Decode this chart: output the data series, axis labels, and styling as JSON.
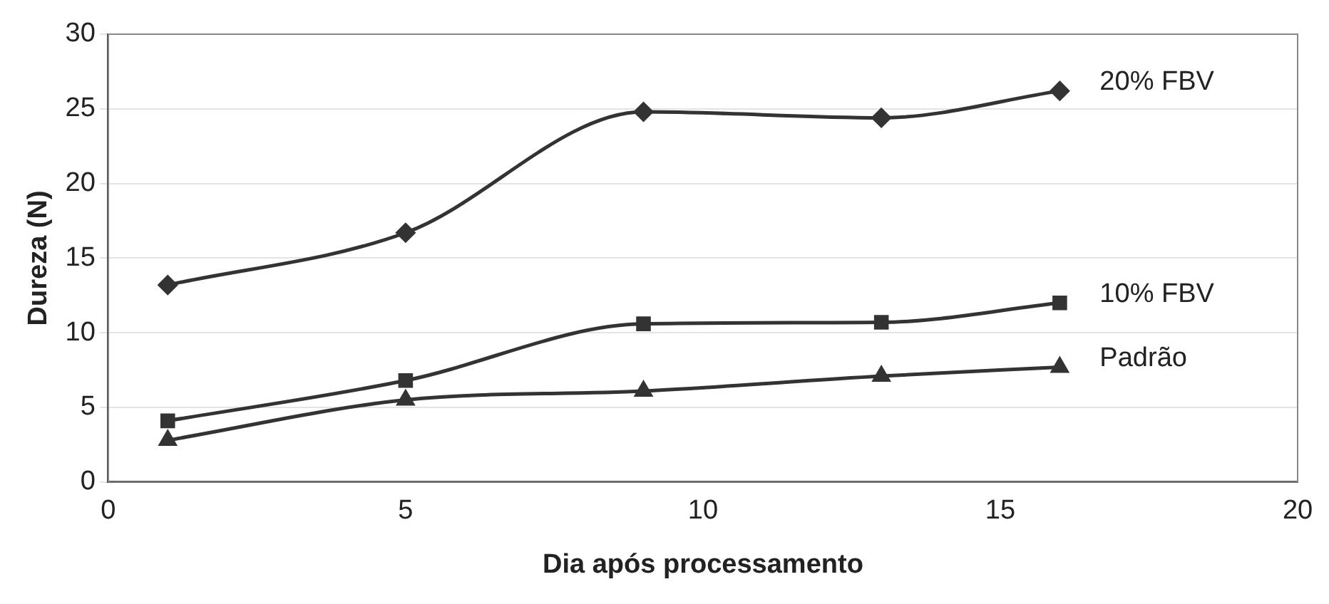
{
  "chart_data": {
    "type": "line",
    "xlabel": "Dia após processamento",
    "ylabel": "Dureza (N)",
    "xlim": [
      0,
      20
    ],
    "xticks": [
      0,
      5,
      10,
      15,
      20
    ],
    "ylim": [
      0,
      30
    ],
    "yticks": [
      0,
      5,
      10,
      15,
      20,
      25,
      30
    ],
    "grid": "y",
    "legend": false,
    "series": [
      {
        "name": "20% FBV",
        "color": "#333333",
        "marker": "diamond",
        "x": [
          1,
          5,
          9,
          13,
          16
        ],
        "values": [
          13.2,
          16.7,
          24.8,
          24.4,
          26.2
        ]
      },
      {
        "name": "10% FBV",
        "color": "#333333",
        "marker": "square",
        "x": [
          1,
          5,
          9,
          13,
          16
        ],
        "values": [
          4.1,
          6.8,
          10.6,
          10.7,
          12.0
        ]
      },
      {
        "name": "Padrão",
        "color": "#333333",
        "marker": "triangle",
        "x": [
          1,
          5,
          9,
          13,
          16
        ],
        "values": [
          2.8,
          5.5,
          6.1,
          7.1,
          7.7
        ]
      }
    ]
  }
}
